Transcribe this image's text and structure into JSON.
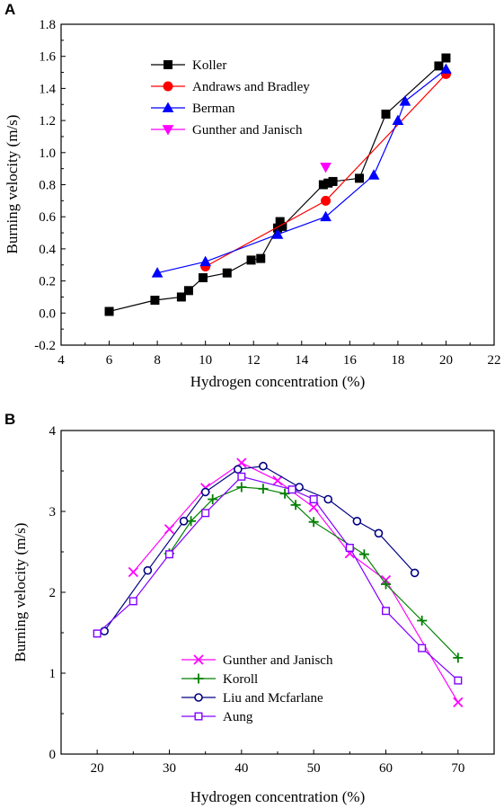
{
  "chart_data": [
    {
      "panel": "A",
      "type": "line",
      "xlabel": "Hydrogen concentration (%)",
      "ylabel": "Burning velocity (m/s)",
      "xlim": [
        4,
        22
      ],
      "ylim": [
        -0.2,
        1.8
      ],
      "xticks": [
        4,
        6,
        8,
        10,
        12,
        14,
        16,
        18,
        20,
        22
      ],
      "xtick_labels": [
        "4",
        "6",
        "8",
        "10",
        "12",
        "14",
        "16",
        "18",
        "20",
        "22"
      ],
      "yticks": [
        -0.2,
        0.0,
        0.2,
        0.4,
        0.6,
        0.8,
        1.0,
        1.2,
        1.4,
        1.6,
        1.8
      ],
      "ytick_labels": [
        "-0.2",
        "0.0",
        "0.2",
        "0.4",
        "0.6",
        "0.8",
        "1.0",
        "1.2",
        "1.4",
        "1.6",
        "1.8"
      ],
      "legend_position": "top-left",
      "series": [
        {
          "name": "Koller",
          "color": "#000000",
          "marker": "square",
          "line": true,
          "x": [
            6.0,
            7.9,
            9.0,
            9.3,
            9.9,
            10.9,
            11.9,
            12.3,
            13.0,
            13.1,
            13.2,
            14.9,
            15.1,
            15.3,
            16.4,
            17.5,
            19.7,
            20.0
          ],
          "y": [
            0.01,
            0.08,
            0.1,
            0.14,
            0.22,
            0.25,
            0.33,
            0.34,
            0.53,
            0.57,
            0.54,
            0.8,
            0.81,
            0.82,
            0.84,
            1.24,
            1.54,
            1.59
          ]
        },
        {
          "name": "Andraws and Bradley",
          "color": "#ff0000",
          "marker": "circle",
          "line": true,
          "x": [
            10.0,
            15.0,
            20.0
          ],
          "y": [
            0.29,
            0.7,
            1.49
          ]
        },
        {
          "name": "Berman",
          "color": "#0000ff",
          "marker": "triangle-up",
          "line": true,
          "x": [
            8.0,
            10.0,
            13.0,
            15.0,
            17.0,
            18.0,
            18.3,
            20.0
          ],
          "y": [
            0.25,
            0.32,
            0.49,
            0.6,
            0.86,
            1.2,
            1.32,
            1.52
          ]
        },
        {
          "name": "Gunther and Janisch",
          "color": "#ff00ff",
          "marker": "triangle-down",
          "line": false,
          "x": [
            15.0
          ],
          "y": [
            0.91
          ]
        }
      ]
    },
    {
      "panel": "B",
      "type": "line",
      "xlabel": "Hydrogen concentration (%)",
      "ylabel": "Burning velocity (m/s)",
      "xlim": [
        15,
        75
      ],
      "ylim": [
        0,
        4
      ],
      "xticks": [
        20,
        30,
        40,
        50,
        60,
        70
      ],
      "xtick_labels": [
        "20",
        "30",
        "40",
        "50",
        "60",
        "70"
      ],
      "yticks": [
        0,
        1,
        2,
        3,
        4
      ],
      "ytick_labels": [
        "0",
        "1",
        "2",
        "3",
        "4"
      ],
      "legend_position": "bottom-center",
      "series": [
        {
          "name": "Gunther and Janisch",
          "color": "#ff00ff",
          "marker": "x",
          "x": [
            25,
            30,
            35,
            40,
            45,
            50,
            55,
            60,
            70
          ],
          "y": [
            2.25,
            2.78,
            3.29,
            3.6,
            3.38,
            3.05,
            2.48,
            2.15,
            0.64
          ]
        },
        {
          "name": "Koroll",
          "color": "#008000",
          "marker": "plus",
          "x": [
            30,
            33,
            36,
            40,
            43,
            46,
            47.5,
            50,
            57,
            60,
            65,
            70
          ],
          "y": [
            2.48,
            2.88,
            3.15,
            3.3,
            3.28,
            3.22,
            3.08,
            2.87,
            2.47,
            2.1,
            1.65,
            1.19
          ]
        },
        {
          "name": "Liu and Mcfarlane",
          "color": "#000080",
          "marker": "circle-open",
          "x": [
            21,
            27,
            32,
            35,
            39.5,
            43,
            48,
            52,
            56,
            59,
            64
          ],
          "y": [
            1.52,
            2.27,
            2.88,
            3.24,
            3.52,
            3.56,
            3.3,
            3.15,
            2.88,
            2.73,
            2.24
          ]
        },
        {
          "name": "Aung",
          "color": "#8000ff",
          "marker": "square-open",
          "x": [
            20,
            25,
            30,
            35,
            40,
            47,
            50,
            55,
            60,
            65,
            70
          ],
          "y": [
            1.49,
            1.89,
            2.47,
            2.98,
            3.43,
            3.27,
            3.15,
            2.55,
            1.77,
            1.31,
            0.91
          ]
        }
      ]
    }
  ]
}
